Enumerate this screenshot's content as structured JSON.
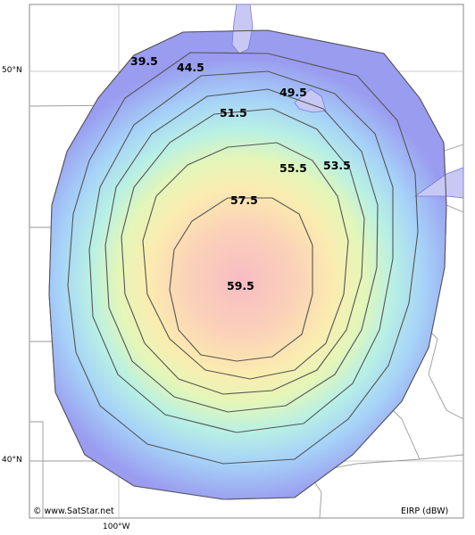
{
  "map": {
    "lat_labels": [
      "50°N",
      "40°N"
    ],
    "lon_labels": [
      "100°W"
    ],
    "copyright": "© www.SatStar.net",
    "legend_unit": "EIRP (dBW)",
    "contours": [
      {
        "value": "39.5",
        "color": "#9a9cf0"
      },
      {
        "value": "44.5",
        "color": "#a6c8f8"
      },
      {
        "value": "49.5",
        "color": "#b0ecf8"
      },
      {
        "value": "51.5",
        "color": "#c8f4c8"
      },
      {
        "value": "53.5",
        "color": "#eaf6b0"
      },
      {
        "value": "55.5",
        "color": "#fbecb0"
      },
      {
        "value": "57.5",
        "color": "#fbd2b8"
      },
      {
        "value": "59.5",
        "color": "#f8c2c2"
      }
    ],
    "land_color": "#ffffff",
    "water_color": "#c8c8f4",
    "border_color": "#9a9a9a",
    "contour_line_color": "#555555"
  }
}
